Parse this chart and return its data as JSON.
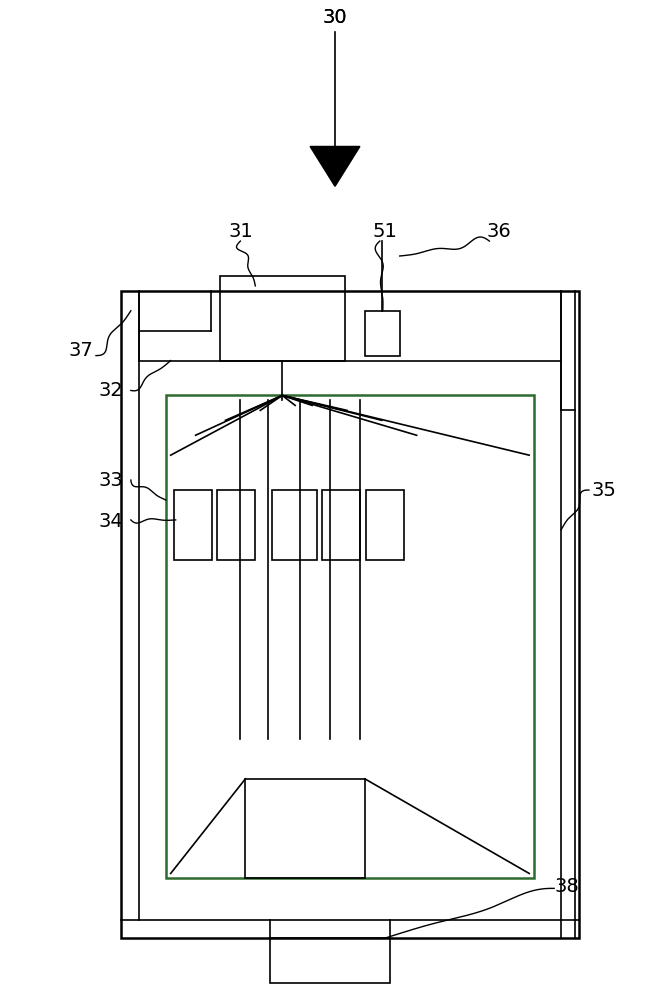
{
  "bg_color": "#ffffff",
  "line_color": "#000000",
  "green_color": "#2d6a2d",
  "label_color": "#000000",
  "fig_width": 6.71,
  "fig_height": 10.0,
  "dpi": 100
}
